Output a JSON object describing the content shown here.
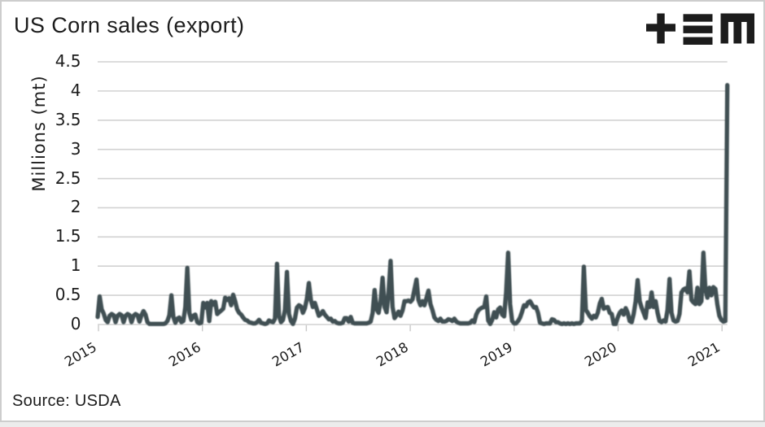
{
  "header": {
    "title": "US Corn sales (export)"
  },
  "logo": {
    "name": "tem-logo",
    "color": "#1c1c1c"
  },
  "footer": {
    "source_label": "Source: USDA"
  },
  "colors": {
    "background": "#ffffff",
    "page_background": "#ececec",
    "border": "#cdcdcd",
    "grid": "#d2d2d2",
    "tick": "#c9c9c9",
    "line": "#3f4f52",
    "text": "#1c1c1c"
  },
  "chart_data": {
    "type": "line",
    "title": "US Corn sales (export)",
    "ylabel": "Millions (mt)",
    "xlabel": "",
    "source": "USDA",
    "ylim": [
      0,
      4.5
    ],
    "y_tick_labels": [
      "4.5",
      "4",
      "3.5",
      "3",
      "2.5",
      "2",
      "1.5",
      "1",
      "0.5",
      "0"
    ],
    "y_tick_values": [
      4.5,
      4,
      3.5,
      3,
      2.5,
      2,
      1.5,
      1,
      0.5,
      0
    ],
    "x_tick_labels": [
      "2015",
      "2016",
      "2017",
      "2018",
      "2019",
      "2020",
      "2021"
    ],
    "x_tick_values": [
      2015,
      2016,
      2017,
      2018,
      2019,
      2020,
      2021
    ],
    "x_range": {
      "start_year": 2014.992,
      "end_year": 2021.046
    },
    "grid": "horizontal",
    "legend_position": "none",
    "series": [
      {
        "name": "US corn export sales",
        "unit": "million metric tonnes",
        "frequency": "weekly",
        "values": [
          0.13,
          0.48,
          0.26,
          0.19,
          0.08,
          0.04,
          0.15,
          0.18,
          0.16,
          0.04,
          0.15,
          0.18,
          0.16,
          0.04,
          0.15,
          0.18,
          0.16,
          0.04,
          0.15,
          0.18,
          0.16,
          0.05,
          0.16,
          0.23,
          0.17,
          0.04,
          0.01,
          0.01,
          0.01,
          0.01,
          0.01,
          0.01,
          0.01,
          0.01,
          0.02,
          0.06,
          0.16,
          0.5,
          0.13,
          0.03,
          0.1,
          0.12,
          0.04,
          0.06,
          0.3,
          0.97,
          0.2,
          0.08,
          0.15,
          0.17,
          0.04,
          0.02,
          0.03,
          0.37,
          0.29,
          0.37,
          0.06,
          0.4,
          0.34,
          0.39,
          0.18,
          0.21,
          0.24,
          0.27,
          0.46,
          0.42,
          0.45,
          0.33,
          0.51,
          0.4,
          0.26,
          0.2,
          0.17,
          0.12,
          0.08,
          0.07,
          0.04,
          0.03,
          0.02,
          0.02,
          0.04,
          0.08,
          0.03,
          0.02,
          0.01,
          0.02,
          0.07,
          0.05,
          0.04,
          0.1,
          1.04,
          0.15,
          0.04,
          0.08,
          0.25,
          0.9,
          0.18,
          0.06,
          0.01,
          0.1,
          0.29,
          0.33,
          0.31,
          0.2,
          0.28,
          0.44,
          0.71,
          0.42,
          0.3,
          0.37,
          0.26,
          0.15,
          0.18,
          0.23,
          0.17,
          0.13,
          0.09,
          0.1,
          0.05,
          0.06,
          0.03,
          0.02,
          0.02,
          0.03,
          0.11,
          0.11,
          0.05,
          0.13,
          0.03,
          0.02,
          0.02,
          0.02,
          0.02,
          0.02,
          0.02,
          0.02,
          0.03,
          0.05,
          0.2,
          0.59,
          0.26,
          0.2,
          0.4,
          0.8,
          0.3,
          0.21,
          0.55,
          1.09,
          0.3,
          0.11,
          0.16,
          0.22,
          0.15,
          0.24,
          0.4,
          0.4,
          0.41,
          0.39,
          0.43,
          0.6,
          0.77,
          0.42,
          0.33,
          0.4,
          0.33,
          0.45,
          0.58,
          0.35,
          0.25,
          0.12,
          0.08,
          0.06,
          0.1,
          0.05,
          0.05,
          0.06,
          0.09,
          0.08,
          0.06,
          0.1,
          0.05,
          0.03,
          0.02,
          0.02,
          0.02,
          0.02,
          0.02,
          0.03,
          0.07,
          0.04,
          0.17,
          0.24,
          0.27,
          0.29,
          0.3,
          0.48,
          0.07,
          0.01,
          0.08,
          0.21,
          0.12,
          0.26,
          0.29,
          0.17,
          0.14,
          0.55,
          1.23,
          0.35,
          0.06,
          0.02,
          0.02,
          0.06,
          0.12,
          0.22,
          0.33,
          0.31,
          0.38,
          0.4,
          0.34,
          0.29,
          0.3,
          0.2,
          0.03,
          0.02,
          0.01,
          0.02,
          0.02,
          0.02,
          0.09,
          0.08,
          0.04,
          0.04,
          0.02,
          0.01,
          0.02,
          0.01,
          0.02,
          0.01,
          0.02,
          0.01,
          0.02,
          0.02,
          0.02,
          0.06,
          0.99,
          0.25,
          0.2,
          0.14,
          0.1,
          0.15,
          0.12,
          0.2,
          0.36,
          0.44,
          0.27,
          0.29,
          0.3,
          0.2,
          0.18,
          0.01,
          0.01,
          0.12,
          0.2,
          0.24,
          0.17,
          0.28,
          0.2,
          0.06,
          0.04,
          0.18,
          0.4,
          0.76,
          0.4,
          0.29,
          0.2,
          0.11,
          0.38,
          0.3,
          0.55,
          0.3,
          0.4,
          0.2,
          0.06,
          0.04,
          0.07,
          0.05,
          0.25,
          0.78,
          0.2,
          0.07,
          0.05,
          0.06,
          0.18,
          0.55,
          0.6,
          0.62,
          0.55,
          0.91,
          0.42,
          0.38,
          0.35,
          0.63,
          0.35,
          0.4,
          1.23,
          0.6,
          0.46,
          0.63,
          0.5,
          0.64,
          0.61,
          0.34,
          0.15,
          0.08,
          0.05,
          0.06,
          4.1
        ]
      }
    ]
  }
}
